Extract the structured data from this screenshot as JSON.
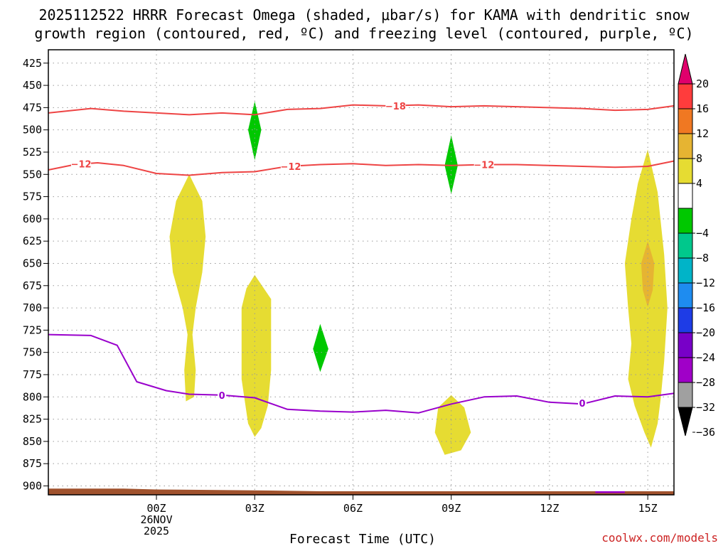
{
  "chart_data": {
    "type": "time-height contour",
    "title_line1": "2025112522 HRRR Forecast Omega (shaded, μbar/s) for KAMA with dendritic snow",
    "title_line2": "growth region (contoured, red, ºC) and freezing level (contoured, purple, ºC)",
    "xlabel": "Forecast Time (UTC)",
    "credit": "coolwx.com/models",
    "x_hours_range": [
      -3.3,
      15.8
    ],
    "y_pressure_range": [
      410,
      910
    ],
    "y_ticks": [
      425,
      450,
      475,
      500,
      525,
      550,
      575,
      600,
      625,
      650,
      675,
      700,
      725,
      750,
      775,
      800,
      825,
      850,
      875,
      900
    ],
    "x_ticks": [
      {
        "hour": 0,
        "label": "00Z",
        "sub1": "26NOV",
        "sub2": "2025"
      },
      {
        "hour": 3,
        "label": "03Z"
      },
      {
        "hour": 6,
        "label": "06Z"
      },
      {
        "hour": 9,
        "label": "09Z"
      },
      {
        "hour": 12,
        "label": "12Z"
      },
      {
        "hour": 15,
        "label": "15Z"
      }
    ],
    "colorbar": {
      "labels": [
        "20",
        "16",
        "12",
        "8",
        "4",
        "−4",
        "−8",
        "−12",
        "−16",
        "−20",
        "−24",
        "−28",
        "−32",
        "−36"
      ],
      "top_arrow_color": "#e0006c",
      "bottom_arrow_color": "#000000",
      "bins": [
        {
          "from": 16,
          "to": 20,
          "color": "#ff3c3c"
        },
        {
          "from": 12,
          "to": 16,
          "color": "#f07822"
        },
        {
          "from": 8,
          "to": 12,
          "color": "#e6b432"
        },
        {
          "from": 4,
          "to": 8,
          "color": "#e6dc32"
        },
        {
          "from": -4,
          "to": 4,
          "color": "#ffffff"
        },
        {
          "from": -8,
          "to": -4,
          "color": "#00c800"
        },
        {
          "from": -12,
          "to": -8,
          "color": "#00c88c"
        },
        {
          "from": -16,
          "to": -12,
          "color": "#00b4c8"
        },
        {
          "from": -20,
          "to": -16,
          "color": "#1e8cf0"
        },
        {
          "from": -24,
          "to": -20,
          "color": "#1e3ce6"
        },
        {
          "from": -28,
          "to": -24,
          "color": "#7800c8"
        },
        {
          "from": -32,
          "to": -28,
          "color": "#a000c8"
        },
        {
          "from": -36,
          "to": -32,
          "color": "#a0a0a0"
        }
      ]
    },
    "contours": [
      {
        "name": "isotherm -18C",
        "color": "#ee4444",
        "label": "−18",
        "label_at": [
          7.3,
          473
        ],
        "points": [
          [
            -3.3,
            481
          ],
          [
            -2,
            476
          ],
          [
            -1,
            479
          ],
          [
            1,
            483
          ],
          [
            2,
            481
          ],
          [
            3,
            483
          ],
          [
            4,
            477
          ],
          [
            5,
            476
          ],
          [
            6,
            472
          ],
          [
            7,
            473
          ],
          [
            8,
            472
          ],
          [
            9,
            474
          ],
          [
            10,
            473
          ],
          [
            11,
            474
          ],
          [
            12,
            475
          ],
          [
            13,
            476
          ],
          [
            14,
            478
          ],
          [
            15,
            477
          ],
          [
            15.8,
            473
          ]
        ]
      },
      {
        "name": "isotherm -12C",
        "color": "#ee4444",
        "label": "−12",
        "label_at": [
          -2.3,
          538
        ],
        "points": [
          [
            -3.3,
            545
          ],
          [
            -2.5,
            539
          ],
          [
            -1.8,
            537
          ],
          [
            -1,
            540
          ],
          [
            0,
            549
          ],
          [
            1,
            551
          ],
          [
            2,
            548
          ],
          [
            3,
            547
          ],
          [
            4,
            541
          ],
          [
            5,
            539
          ],
          [
            6,
            538
          ],
          [
            7,
            540
          ],
          [
            8,
            539
          ],
          [
            9,
            540
          ],
          [
            10,
            539
          ],
          [
            11,
            539
          ],
          [
            12,
            540
          ],
          [
            13,
            541
          ],
          [
            14,
            542
          ],
          [
            15,
            541
          ],
          [
            15.8,
            535
          ]
        ]
      },
      {
        "name": "isotherm -12C label 2",
        "color": "#ee4444",
        "label": "−12",
        "label_at": [
          4.1,
          541
        ],
        "points": []
      },
      {
        "name": "isotherm -12C label 3",
        "color": "#ee4444",
        "label": "−12",
        "label_at": [
          10,
          539
        ],
        "points": []
      },
      {
        "name": "freezing level 0C",
        "color": "#9900cc",
        "label": "0",
        "label_at": [
          2,
          798
        ],
        "points": [
          [
            -3.3,
            730
          ],
          [
            -2,
            731
          ],
          [
            -1.2,
            742
          ],
          [
            -0.6,
            783
          ],
          [
            0.3,
            793
          ],
          [
            1,
            797
          ],
          [
            2,
            798
          ],
          [
            3,
            801
          ],
          [
            4,
            814
          ],
          [
            5,
            816
          ],
          [
            6,
            817
          ],
          [
            7,
            815
          ],
          [
            8,
            818
          ],
          [
            9,
            808
          ],
          [
            10,
            800
          ],
          [
            11,
            799
          ],
          [
            12,
            806
          ],
          [
            13,
            808
          ],
          [
            14,
            799
          ],
          [
            15,
            800
          ],
          [
            15.8,
            796
          ]
        ]
      },
      {
        "name": "freezing level label 2",
        "color": "#9900cc",
        "label": "0",
        "label_at": [
          13,
          807
        ],
        "points": []
      }
    ],
    "omega_regions": [
      {
        "value_bin": "4 to 8",
        "color": "#e6dc32",
        "points": [
          [
            1,
            550
          ],
          [
            1.4,
            580
          ],
          [
            1.5,
            620
          ],
          [
            1.4,
            660
          ],
          [
            1.2,
            700
          ],
          [
            1.1,
            730
          ],
          [
            1.2,
            770
          ],
          [
            1.15,
            800
          ],
          [
            0.9,
            805
          ],
          [
            0.85,
            770
          ],
          [
            0.95,
            730
          ],
          [
            0.8,
            700
          ],
          [
            0.5,
            660
          ],
          [
            0.4,
            620
          ],
          [
            0.6,
            580
          ]
        ]
      },
      {
        "value_bin": "4 to 8",
        "color": "#e6dc32",
        "points": [
          [
            3,
            663
          ],
          [
            3.5,
            690
          ],
          [
            3.5,
            770
          ],
          [
            3.4,
            810
          ],
          [
            3.2,
            835
          ],
          [
            3,
            845
          ],
          [
            2.8,
            830
          ],
          [
            2.6,
            780
          ],
          [
            2.6,
            700
          ],
          [
            2.75,
            678
          ]
        ]
      },
      {
        "value_bin": "4 to 8",
        "color": "#e6dc32",
        "points": [
          [
            9,
            798
          ],
          [
            9.4,
            812
          ],
          [
            9.6,
            840
          ],
          [
            9.3,
            860
          ],
          [
            8.8,
            865
          ],
          [
            8.5,
            840
          ],
          [
            8.6,
            812
          ]
        ]
      },
      {
        "value_bin": "4 to 8",
        "color": "#e6dc32",
        "points": [
          [
            15,
            522
          ],
          [
            15.3,
            570
          ],
          [
            15.5,
            640
          ],
          [
            15.6,
            700
          ],
          [
            15.5,
            760
          ],
          [
            15.4,
            800
          ],
          [
            15.3,
            830
          ],
          [
            15.1,
            857
          ],
          [
            14.9,
            840
          ],
          [
            14.6,
            810
          ],
          [
            14.4,
            780
          ],
          [
            14.5,
            740
          ],
          [
            14.4,
            700
          ],
          [
            14.3,
            650
          ],
          [
            14.5,
            600
          ],
          [
            14.7,
            560
          ]
        ]
      },
      {
        "value_bin": "8 to 12",
        "color": "#e6b432",
        "points": [
          [
            15,
            625
          ],
          [
            15.2,
            650
          ],
          [
            15.15,
            680
          ],
          [
            15,
            699
          ],
          [
            14.85,
            680
          ],
          [
            14.8,
            650
          ]
        ]
      },
      {
        "value_bin": "-8 to -4",
        "color": "#00c800",
        "points": [
          [
            3,
            468
          ],
          [
            3.2,
            500
          ],
          [
            3,
            534
          ],
          [
            2.8,
            500
          ]
        ]
      },
      {
        "value_bin": "-8 to -4",
        "color": "#00c800",
        "points": [
          [
            9,
            506
          ],
          [
            9.2,
            540
          ],
          [
            9,
            572
          ],
          [
            8.8,
            540
          ]
        ]
      },
      {
        "value_bin": "-8 to -4",
        "color": "#00c800",
        "points": [
          [
            5,
            718
          ],
          [
            5.25,
            746
          ],
          [
            5,
            772
          ],
          [
            4.78,
            746
          ]
        ]
      }
    ],
    "surface": {
      "color": "#a0522d",
      "label": "terrain (surface pressure)",
      "points": [
        [
          -3.3,
          903
        ],
        [
          -1,
          903
        ],
        [
          0,
          904
        ],
        [
          3,
          905
        ],
        [
          5,
          906
        ],
        [
          8,
          906
        ],
        [
          10,
          906
        ],
        [
          15.8,
          906
        ]
      ]
    },
    "extra_freezing_segment": {
      "color": "#9900cc",
      "points": [
        [
          13.4,
          907
        ],
        [
          14.3,
          907
        ]
      ]
    }
  }
}
